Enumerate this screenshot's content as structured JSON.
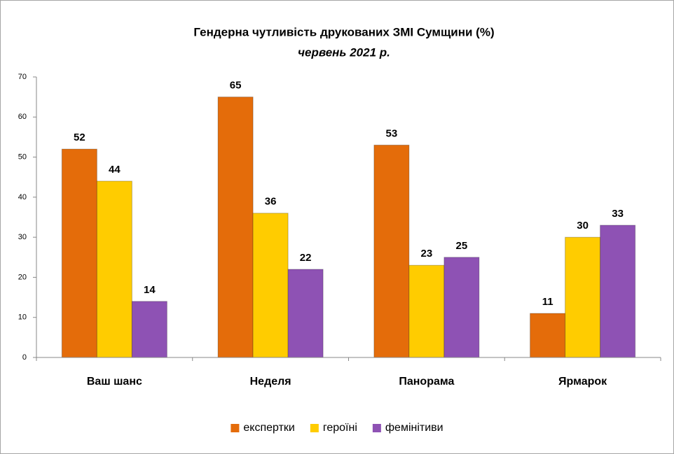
{
  "chart_data": {
    "type": "bar",
    "title": "Гендерна чутливість друкованих ЗМІ Сумщини (%)",
    "subtitle": "червень 2021 р.",
    "categories": [
      "Ваш шанс",
      "Неделя",
      "Панорама",
      "Ярмарок"
    ],
    "series": [
      {
        "name": "експертки",
        "color": "#e46c0a",
        "values": [
          52,
          65,
          53,
          11
        ]
      },
      {
        "name": "героїні",
        "color": "#ffcc00",
        "values": [
          44,
          36,
          23,
          30
        ]
      },
      {
        "name": "фемінітиви",
        "color": "#8e52b4",
        "values": [
          14,
          22,
          25,
          33
        ]
      }
    ],
    "ylim": [
      0,
      70
    ],
    "yticks": [
      0,
      10,
      20,
      30,
      40,
      50,
      60,
      70
    ],
    "grid": false,
    "legend": "bottom"
  }
}
